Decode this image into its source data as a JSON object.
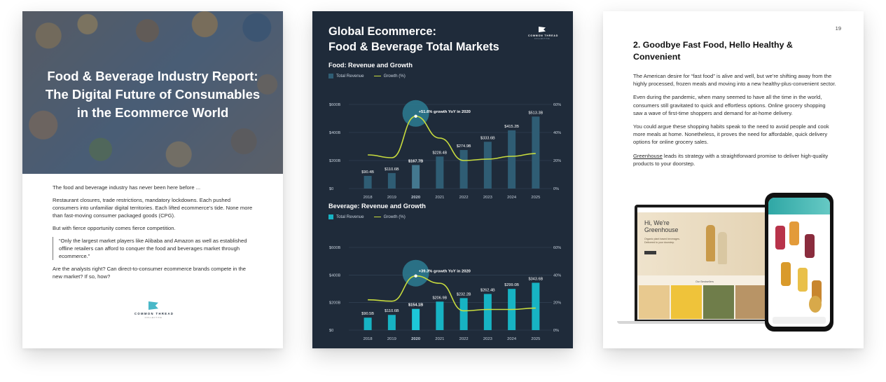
{
  "page1": {
    "cover_title": "Food & Beverage Industry Report:\nThe Digital Future of Consumables\nin the Ecommerce World",
    "paragraphs": [
      "The food and beverage industry has never been here before ...",
      "Restaurant closures, trade restrictions, mandatory lockdowns. Each pushed consumers into unfamiliar digital territories. Each lifted ecommerce’s tide. None more than fast-moving consumer packaged goods (CPG).",
      "But with fierce opportunity comes fierce competition."
    ],
    "quote": "“Only the largest market players like Alibaba and Amazon as well as established offline retailers can afford to conquer the food and beverages market through ecommerce.”",
    "closing": "Are the analysts right? Can direct-to-consumer ecommerce brands compete in the new market? If so, how?",
    "logo_text": "COMMON THREAD",
    "logo_sub": "COLLECTIVE"
  },
  "page2": {
    "title": "Global Ecommerce:\nFood & Beverage Total Markets",
    "logo_text": "COMMON THREAD",
    "logo_sub": "COLLECTIVE"
  },
  "chart_data": [
    {
      "type": "bar",
      "title": "Food: Revenue and Growth",
      "categories": [
        "2018",
        "2019",
        "2020",
        "2021",
        "2022",
        "2023",
        "2024",
        "2025"
      ],
      "series": [
        {
          "name": "Total Revenue",
          "values": [
            90.4,
            110.6,
            167.7,
            228.4,
            274.9,
            333.6,
            415.2,
            513.3
          ]
        },
        {
          "name": "Growth (%)",
          "values": [
            24,
            22,
            51.6,
            36,
            20,
            21,
            23,
            25
          ]
        }
      ],
      "value_labels": [
        "$90.4B",
        "$110.6B",
        "$167.7B",
        "$228.4B",
        "$274.9B",
        "$333.6B",
        "$415.2B",
        "$513.3B"
      ],
      "left_ticks": [
        "$0",
        "$200B",
        "$400B",
        "$600B"
      ],
      "right_ticks": [
        "0%",
        "20%",
        "40%",
        "60%"
      ],
      "ylim": [
        0,
        600
      ],
      "y2lim": [
        0,
        60
      ],
      "highlight_index": 2,
      "annotation": "+51.6% growth YoY in 2020",
      "bar_color": "#2f5d74",
      "highlight_bar_color": "#44788f",
      "line_color": "#c8dc3e",
      "grid": true,
      "legend": "top-left"
    },
    {
      "type": "bar",
      "title": "Beverage: Revenue and Growth",
      "categories": [
        "2018",
        "2019",
        "2020",
        "2021",
        "2022",
        "2023",
        "2024",
        "2025"
      ],
      "series": [
        {
          "name": "Total Revenue",
          "values": [
            90.5,
            110.6,
            154.1,
            206.9,
            232.2,
            262.4,
            299.0,
            343.6
          ]
        },
        {
          "name": "Growth (%)",
          "values": [
            22,
            21,
            39.3,
            34,
            14,
            15,
            15,
            16
          ]
        }
      ],
      "value_labels": [
        "$90.5B",
        "$110.6B",
        "$154.1B",
        "$206.9B",
        "$232.2B",
        "$262.4B",
        "$299.0B",
        "$343.6B"
      ],
      "left_ticks": [
        "$0",
        "$200B",
        "$400B",
        "$600B"
      ],
      "right_ticks": [
        "0%",
        "20%",
        "40%",
        "60%"
      ],
      "ylim": [
        0,
        600
      ],
      "y2lim": [
        0,
        60
      ],
      "highlight_index": 2,
      "annotation": "+39.3% growth YoY in 2020",
      "bar_color": "#17b3c3",
      "highlight_bar_color": "#1dc7d8",
      "line_color": "#c8dc3e",
      "grid": true,
      "legend": "top-left"
    }
  ],
  "page3": {
    "page_number": "19",
    "title": "2. Goodbye Fast Food, Hello Healthy &\nConvenient",
    "paragraphs": [
      "The American desire for “fast food” is alive and well, but we’re shifting away from the highly processed, frozen meals and moving into a new healthy-plus-convenient sector.",
      "Even during the pandemic, when many seemed to have all the time in the world, consumers still gravitated to quick and effortless options. Online grocery shopping saw a wave of first-time shoppers and demand for at-home delivery.",
      "You could argue these shopping habits speak to the need to avoid people and cook more meals at home. Nonetheless, it proves the need for affordable, quick delivery options for online grocery sales."
    ],
    "link_text": "Greenhouse",
    "link_rest": " leads its strategy with a straightforward promise to deliver high-quality products to your doorstep.",
    "mockup": {
      "hero_text": "Hi, We're\nGreenhouse",
      "hero_sub": "Organic plant based beverages. Delivered to your doorstep.",
      "section": "Our Bestsellers"
    }
  }
}
